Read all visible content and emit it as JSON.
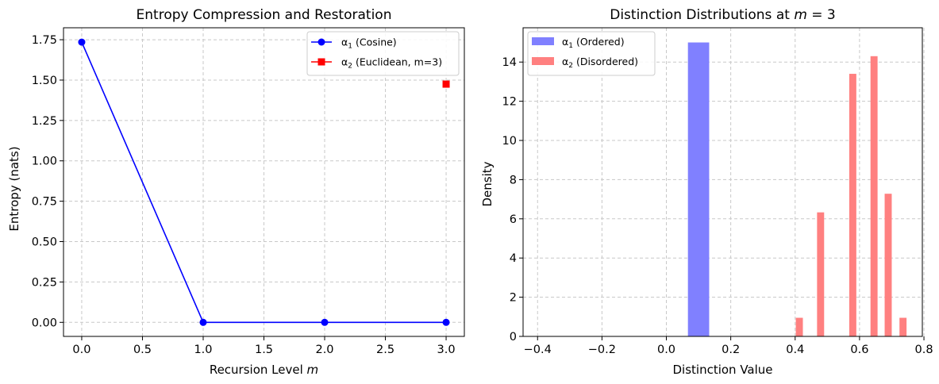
{
  "chart_data": [
    {
      "type": "line",
      "title": "Entropy Compression and Restoration",
      "xlabel": "Recursion Level m",
      "ylabel": "Entropy (nats)",
      "xlim": [
        -0.15,
        3.15
      ],
      "ylim": [
        -0.087,
        1.824
      ],
      "xticks": [
        0.0,
        0.5,
        1.0,
        1.5,
        2.0,
        2.5,
        3.0
      ],
      "xtick_labels": [
        "0.0",
        "0.5",
        "1.0",
        "1.5",
        "2.0",
        "2.5",
        "3.0"
      ],
      "yticks": [
        0.0,
        0.25,
        0.5,
        0.75,
        1.0,
        1.25,
        1.5,
        1.75
      ],
      "ytick_labels": [
        "0.00",
        "0.25",
        "0.50",
        "0.75",
        "1.00",
        "1.25",
        "1.50",
        "1.75"
      ],
      "grid": true,
      "legend_position": "top-right",
      "series": [
        {
          "name": "α1 (Cosine)",
          "color": "#0000ff",
          "marker": "circle",
          "line": true,
          "x": [
            0,
            1,
            2,
            3
          ],
          "y": [
            1.735,
            0.0,
            0.0,
            0.0
          ]
        },
        {
          "name": "α2 (Euclidean, m=3)",
          "color": "#ff0000",
          "marker": "square",
          "line": false,
          "x": [
            3
          ],
          "y": [
            1.475
          ]
        }
      ]
    },
    {
      "type": "bar",
      "title": "Distinction Distributions at m = 3",
      "xlabel": "Distinction Value",
      "ylabel": "Density",
      "xlim": [
        -0.445,
        0.795
      ],
      "ylim": [
        0,
        15.75
      ],
      "xticks": [
        -0.4,
        -0.2,
        0.0,
        0.2,
        0.4,
        0.6,
        0.8
      ],
      "xtick_labels": [
        "−0.4",
        "−0.2",
        "0.0",
        "0.2",
        "0.4",
        "0.6",
        "0.8"
      ],
      "yticks": [
        0,
        2,
        4,
        6,
        8,
        10,
        12,
        14
      ],
      "ytick_labels": [
        "0",
        "2",
        "4",
        "6",
        "8",
        "10",
        "12",
        "14"
      ],
      "grid": true,
      "legend_position": "top-left",
      "series": [
        {
          "name": "α1 (Ordered)",
          "color": "#8080ff",
          "bins": [
            {
              "x0": 0.067,
              "x1": 0.133,
              "value": 15.0
            }
          ]
        },
        {
          "name": "α2 (Disordered)",
          "color": "#ff8080",
          "bins": [
            {
              "x0": 0.402,
              "x1": 0.424,
              "value": 0.95
            },
            {
              "x0": 0.468,
              "x1": 0.49,
              "value": 6.33
            },
            {
              "x0": 0.568,
              "x1": 0.59,
              "value": 13.4
            },
            {
              "x0": 0.634,
              "x1": 0.656,
              "value": 14.3
            },
            {
              "x0": 0.678,
              "x1": 0.7,
              "value": 7.28
            },
            {
              "x0": 0.724,
              "x1": 0.746,
              "value": 0.95
            }
          ]
        }
      ]
    }
  ]
}
